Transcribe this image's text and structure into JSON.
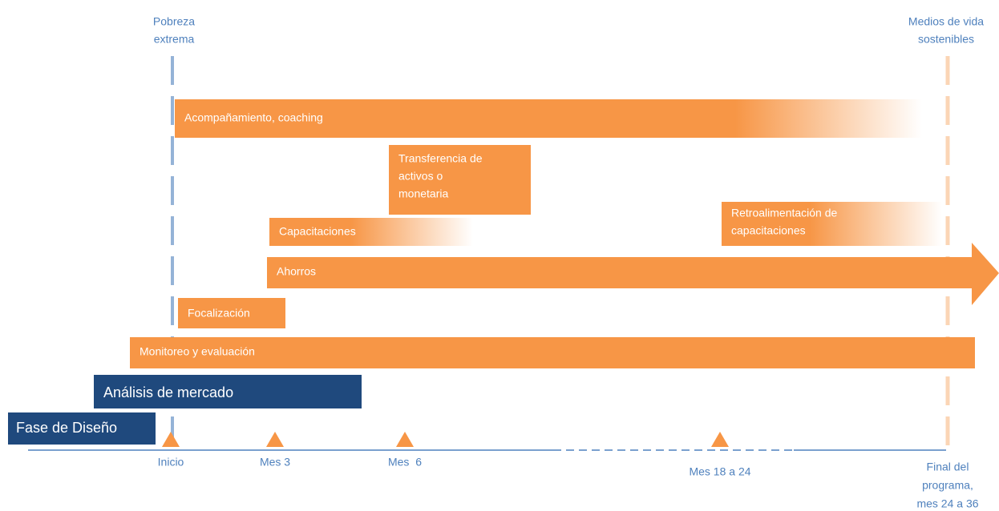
{
  "top_labels": [
    {
      "lines": [
        "Pobreza",
        "extrema"
      ]
    },
    {
      "lines": [
        "Medios de vida",
        "sostenibles"
      ]
    }
  ],
  "bars": [
    {
      "lines": [
        "Acompañamiento, coaching"
      ]
    },
    {
      "lines": [
        "Transferencia de",
        "activos o",
        "monetaria"
      ]
    },
    {
      "lines": [
        "Capacitaciones"
      ]
    },
    {
      "lines": [
        "Retroalimentación de",
        "capacitaciones"
      ]
    },
    {
      "lines": [
        "Ahorros"
      ]
    },
    {
      "lines": [
        "Focalización"
      ]
    },
    {
      "lines": [
        "Monitoreo y evaluación"
      ]
    },
    {
      "lines": [
        "Análisis de mercado"
      ]
    },
    {
      "lines": [
        "Fase de Diseño"
      ]
    }
  ],
  "milestones": [
    {
      "lines": [
        "Inicio"
      ]
    },
    {
      "lines": [
        "Mes 3"
      ]
    },
    {
      "lines": [
        "Mes  6"
      ]
    },
    {
      "lines": [
        "Mes 18 a 24"
      ]
    },
    {
      "lines": [
        "Final del",
        "programa,",
        "mes 24 a 36"
      ]
    }
  ]
}
